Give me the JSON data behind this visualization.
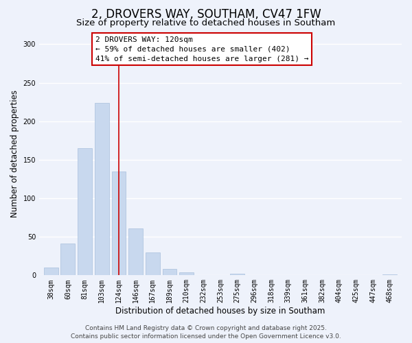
{
  "title": "2, DROVERS WAY, SOUTHAM, CV47 1FW",
  "subtitle": "Size of property relative to detached houses in Southam",
  "xlabel": "Distribution of detached houses by size in Southam",
  "ylabel": "Number of detached properties",
  "bar_labels": [
    "38sqm",
    "60sqm",
    "81sqm",
    "103sqm",
    "124sqm",
    "146sqm",
    "167sqm",
    "189sqm",
    "210sqm",
    "232sqm",
    "253sqm",
    "275sqm",
    "296sqm",
    "318sqm",
    "339sqm",
    "361sqm",
    "382sqm",
    "404sqm",
    "425sqm",
    "447sqm",
    "468sqm"
  ],
  "bar_values": [
    10,
    41,
    165,
    224,
    135,
    61,
    30,
    8,
    4,
    0,
    0,
    2,
    0,
    0,
    0,
    0,
    0,
    0,
    0,
    0,
    1
  ],
  "bar_color": "#c8d8ee",
  "bar_edge_color": "#a8c0dc",
  "marker_line_x_label": "124sqm",
  "marker_line_color": "#cc0000",
  "annotation_title": "2 DROVERS WAY: 120sqm",
  "annotation_line1": "← 59% of detached houses are smaller (402)",
  "annotation_line2": "41% of semi-detached houses are larger (281) →",
  "annotation_box_color": "#ffffff",
  "annotation_box_edge_color": "#cc0000",
  "ylim": [
    0,
    315
  ],
  "yticks": [
    0,
    50,
    100,
    150,
    200,
    250,
    300
  ],
  "footer_line1": "Contains HM Land Registry data © Crown copyright and database right 2025.",
  "footer_line2": "Contains public sector information licensed under the Open Government Licence v3.0.",
  "bg_color": "#eef2fb",
  "grid_color": "#ffffff",
  "title_fontsize": 12,
  "subtitle_fontsize": 9.5,
  "axis_label_fontsize": 8.5,
  "tick_fontsize": 7,
  "footer_fontsize": 6.5,
  "annotation_fontsize": 8
}
